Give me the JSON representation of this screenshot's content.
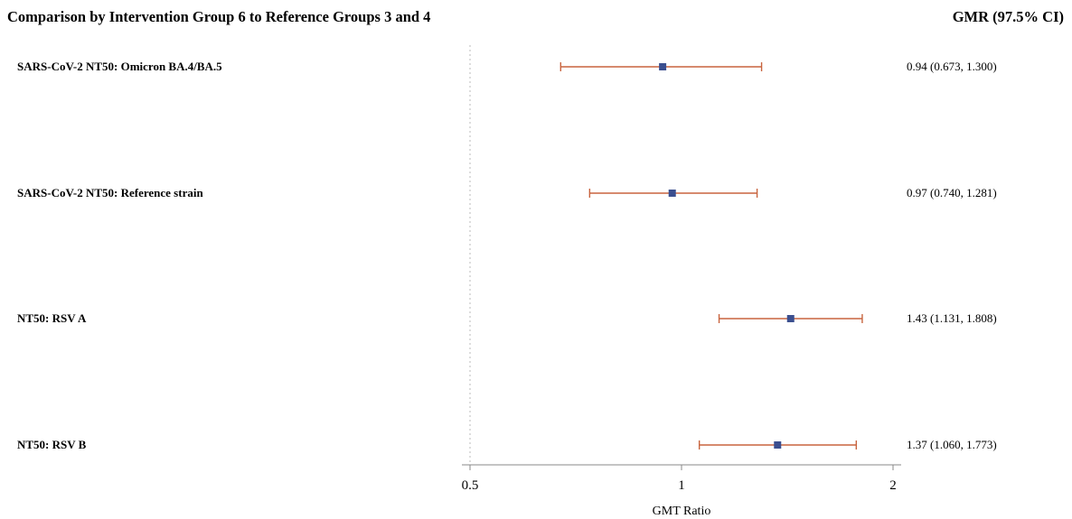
{
  "header": {
    "title": "Comparison by Intervention Group 6 to Reference Groups 3 and 4",
    "ci_header": "GMR (97.5% CI)"
  },
  "rows": [
    {
      "label": "SARS-CoV-2 NT50: Omicron BA.4/BA.5",
      "ci_text": "0.94 (0.673, 1.300)"
    },
    {
      "label": "SARS-CoV-2 NT50: Reference strain",
      "ci_text": "0.97 (0.740, 1.281)"
    },
    {
      "label": "NT50: RSV A",
      "ci_text": "1.43 (1.131, 1.808)"
    },
    {
      "label": "NT50: RSV B",
      "ci_text": "1.37 (1.060, 1.773)"
    }
  ],
  "chart_data": {
    "type": "forest",
    "xscale": "log",
    "xlabel": "GMT Ratio",
    "xlim": [
      0.47,
      2.03
    ],
    "xticks": [
      0.5,
      1,
      2
    ],
    "xtick_labels": [
      "0.5",
      "1",
      "2"
    ],
    "reference_line": 0.5,
    "colors": {
      "point": "#3b4f8f",
      "ci": "#c8643e",
      "reference": "#bbbbbb",
      "axis": "#888888"
    },
    "series": [
      {
        "category": "SARS-CoV-2 NT50: Omicron BA.4/BA.5",
        "estimate": 0.94,
        "lower": 0.673,
        "upper": 1.3
      },
      {
        "category": "SARS-CoV-2 NT50: Reference strain",
        "estimate": 0.97,
        "lower": 0.74,
        "upper": 1.281
      },
      {
        "category": "NT50: RSV A",
        "estimate": 1.43,
        "lower": 1.131,
        "upper": 1.808
      },
      {
        "category": "NT50: RSV B",
        "estimate": 1.37,
        "lower": 1.06,
        "upper": 1.773
      }
    ]
  }
}
